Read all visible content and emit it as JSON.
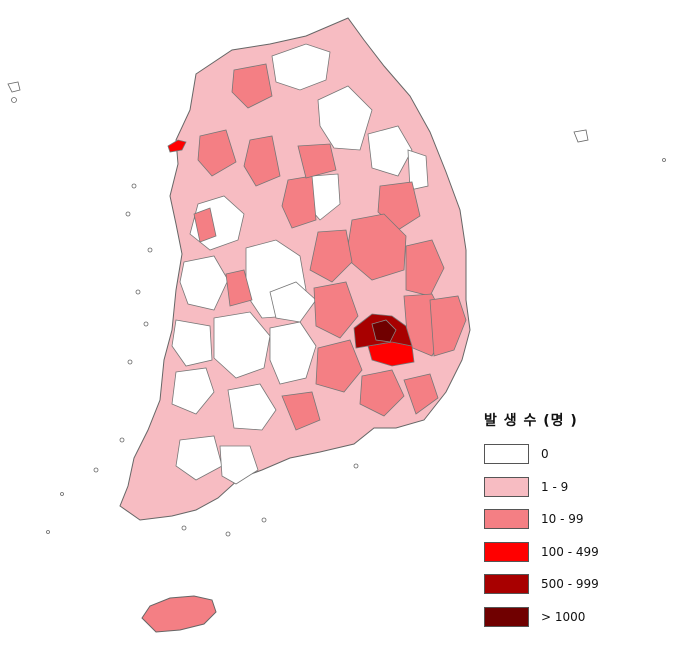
{
  "legend": {
    "title": "발 생 수 (명 )",
    "items": [
      {
        "label": "0",
        "color": "#ffffff"
      },
      {
        "label": "1 - 9",
        "color": "#f7bcc2"
      },
      {
        "label": "10 - 99",
        "color": "#f47f84"
      },
      {
        "label": "100 - 499",
        "color": "#ff0000"
      },
      {
        "label": "500 - 999",
        "color": "#a80000"
      },
      {
        "label": "> 1000",
        "color": "#700000"
      }
    ]
  },
  "region_colors": {
    "outline": "#666666",
    "fill_low": "#f7bcc2",
    "fill_mid": "#f47f84",
    "fill_high": "#ff0000",
    "fill_very_high": "#a80000",
    "fill_max": "#700000"
  }
}
